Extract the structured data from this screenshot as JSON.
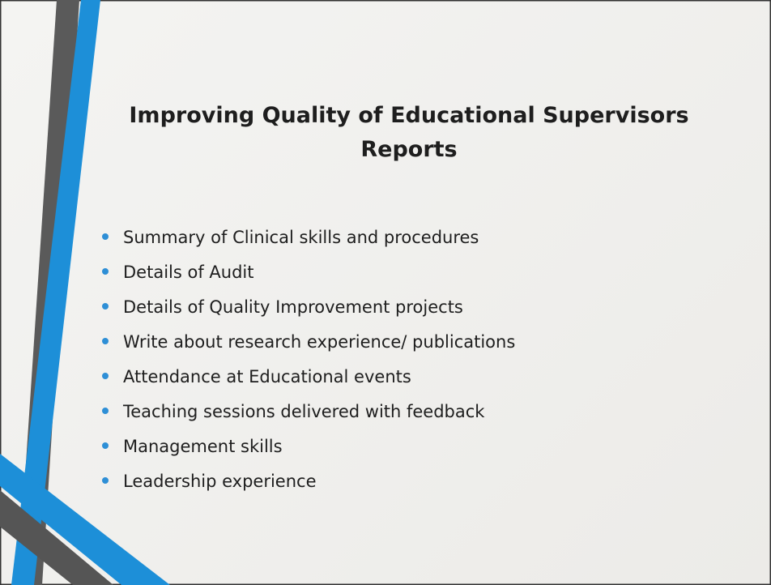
{
  "slide": {
    "title": "Improving Quality of Educational Supervisors Reports",
    "bullets": [
      "Summary of Clinical skills and procedures",
      "Details of Audit",
      "Details of Quality Improvement projects",
      "Write about research experience/ publications",
      "Attendance at Educational events",
      "Teaching sessions delivered with feedback",
      "Management skills",
      "Leadership experience"
    ]
  }
}
